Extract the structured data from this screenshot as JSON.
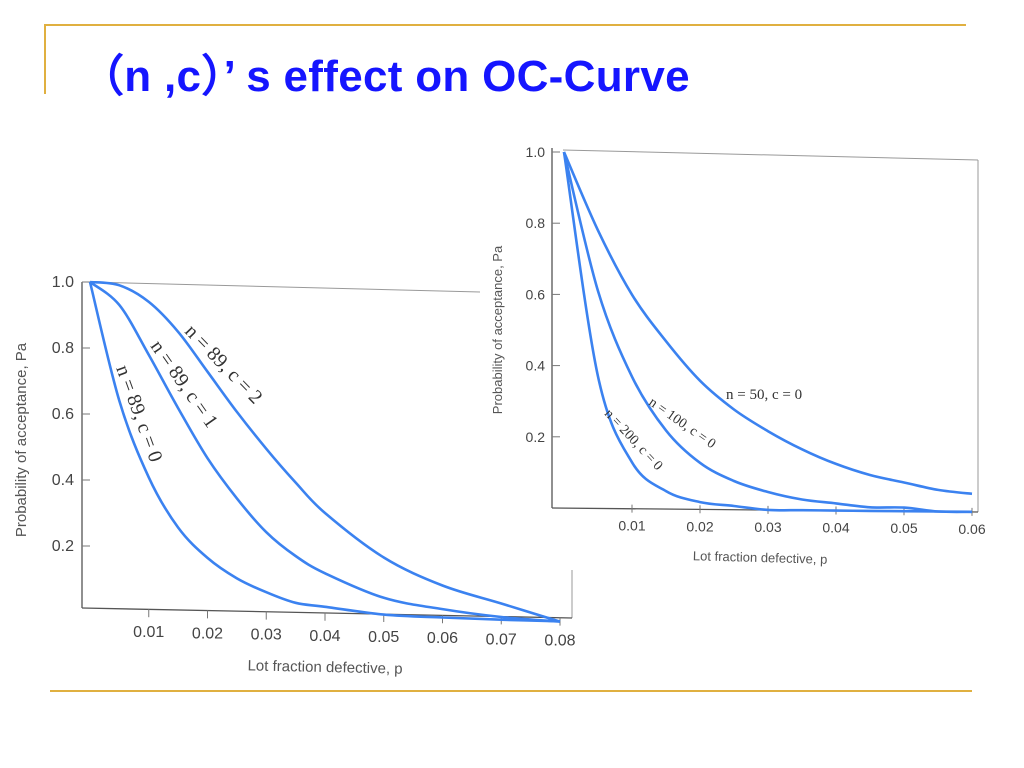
{
  "title": "（n ,c）’ s effect on OC-Curve",
  "colors": {
    "accent": "#1515ff",
    "curve": "#3b82f0",
    "decoration": "#e0b040"
  },
  "chart_data": [
    {
      "type": "line",
      "xlabel": "Lot fraction defective, p",
      "ylabel": "Probability of acceptance, Pa",
      "xlim": [
        0,
        0.08
      ],
      "ylim": [
        0,
        1.0
      ],
      "xticks": [
        "0.01",
        "0.02",
        "0.03",
        "0.04",
        "0.05",
        "0.06",
        "0.07",
        "0.08"
      ],
      "yticks": [
        "0.2",
        "0.4",
        "0.6",
        "0.8",
        "1.0"
      ],
      "x": [
        0,
        0.005,
        0.01,
        0.015,
        0.02,
        0.025,
        0.03,
        0.035,
        0.04,
        0.05,
        0.06,
        0.07,
        0.08
      ],
      "series": [
        {
          "name": "n = 89, c = 0",
          "values": [
            1.0,
            0.64,
            0.41,
            0.26,
            0.17,
            0.11,
            0.07,
            0.04,
            0.03,
            0.01,
            0.005,
            0.002,
            0.001
          ]
        },
        {
          "name": "n = 89, c = 1",
          "values": [
            1.0,
            0.93,
            0.78,
            0.62,
            0.47,
            0.35,
            0.25,
            0.18,
            0.13,
            0.06,
            0.03,
            0.01,
            0.0
          ]
        },
        {
          "name": "n = 89, c = 2",
          "values": [
            1.0,
            0.99,
            0.94,
            0.85,
            0.73,
            0.61,
            0.5,
            0.4,
            0.31,
            0.18,
            0.1,
            0.05,
            0.0
          ]
        }
      ]
    },
    {
      "type": "line",
      "xlabel": "Lot fraction defective, p",
      "ylabel": "Probability of acceptance, Pa",
      "ylabel_tick_top": "1.0",
      "xlim": [
        0,
        0.06
      ],
      "ylim": [
        0,
        1.0
      ],
      "xticks": [
        "0.01",
        "0.02",
        "0.03",
        "0.04",
        "0.05",
        "0.06"
      ],
      "yticks": [
        "0.2",
        "0.4",
        "0.6",
        "0.8",
        "1.0"
      ],
      "x": [
        0,
        0.005,
        0.01,
        0.015,
        0.02,
        0.025,
        0.03,
        0.035,
        0.04,
        0.045,
        0.05,
        0.055,
        0.06
      ],
      "series": [
        {
          "name": "n = 50, c = 0",
          "values": [
            1.0,
            0.78,
            0.6,
            0.47,
            0.36,
            0.28,
            0.22,
            0.17,
            0.13,
            0.1,
            0.08,
            0.06,
            0.05
          ]
        },
        {
          "name": "n = 100, c = 0",
          "values": [
            1.0,
            0.61,
            0.37,
            0.22,
            0.13,
            0.08,
            0.05,
            0.03,
            0.02,
            0.01,
            0.01,
            0.0,
            0.0
          ]
        },
        {
          "name": "n = 200, c = 0",
          "values": [
            1.0,
            0.37,
            0.13,
            0.05,
            0.02,
            0.01,
            0.0,
            0.0,
            0.0,
            0.0,
            0.0,
            0.0,
            0.0
          ]
        }
      ]
    }
  ]
}
